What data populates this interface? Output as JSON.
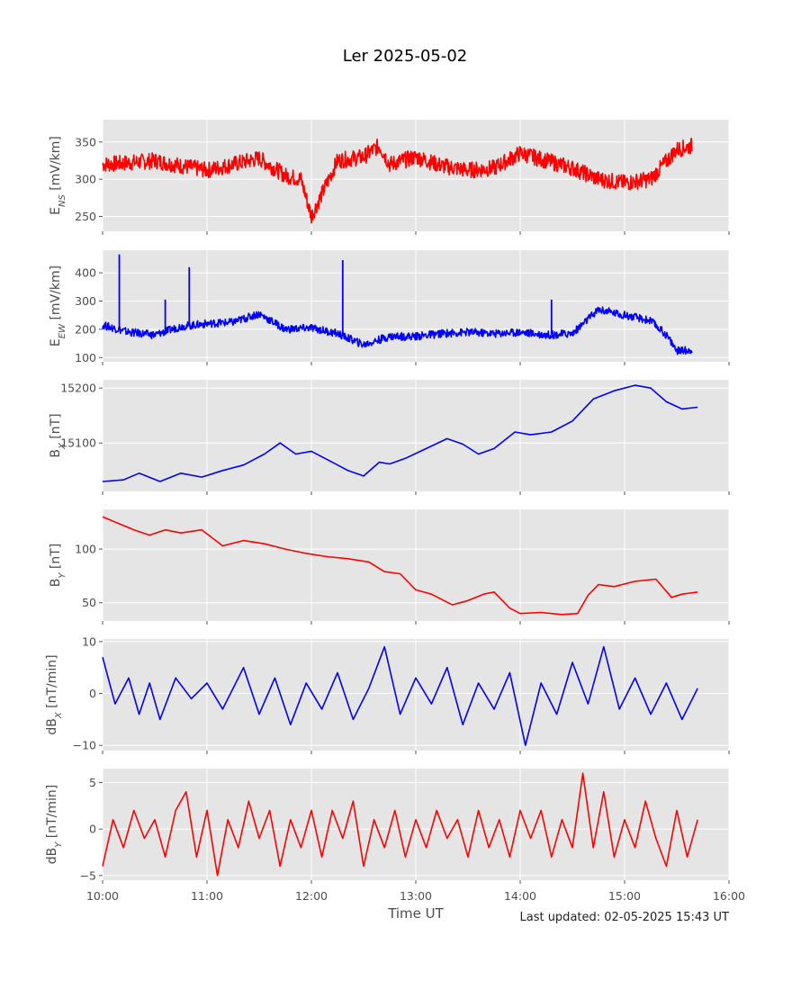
{
  "title": "Ler 2025-05-02",
  "footer": "Last updated: 02-05-2025 15:43 UT",
  "xlabel": "Time UT",
  "x_ticks": [
    "10:00",
    "11:00",
    "12:00",
    "13:00",
    "14:00",
    "15:00",
    "16:00"
  ],
  "chart_data": [
    {
      "type": "line",
      "ylabel": "E_NS [mV/km]",
      "ylim": [
        230,
        380
      ],
      "yticks": [
        250,
        300,
        350
      ],
      "color": "#ff0000",
      "xlim": [
        10.0,
        16.0
      ],
      "series": [
        {
          "x": [
            10.0,
            10.25,
            10.5,
            10.75,
            11.0,
            11.25,
            11.5,
            11.75,
            11.9,
            12.0,
            12.25,
            12.5,
            12.65,
            12.75,
            13.0,
            13.25,
            13.5,
            13.75,
            14.0,
            14.25,
            14.5,
            14.75,
            15.0,
            15.25,
            15.5,
            15.65
          ],
          "y": [
            320,
            322,
            325,
            318,
            312,
            320,
            328,
            305,
            300,
            250,
            325,
            330,
            345,
            320,
            330,
            318,
            312,
            315,
            335,
            325,
            315,
            300,
            295,
            300,
            340,
            345
          ]
        }
      ]
    },
    {
      "type": "line",
      "ylabel": "E_EW [mV/km]",
      "ylim": [
        85,
        480
      ],
      "yticks": [
        100,
        200,
        300,
        400
      ],
      "color": "#0000ff",
      "xlim": [
        10.0,
        16.0
      ],
      "series": [
        {
          "x": [
            10.0,
            10.25,
            10.5,
            10.75,
            11.0,
            11.25,
            11.5,
            11.75,
            12.0,
            12.25,
            12.5,
            12.75,
            13.0,
            13.25,
            13.5,
            13.75,
            14.0,
            14.25,
            14.5,
            14.75,
            15.0,
            15.25,
            15.4,
            15.5,
            15.6,
            15.65
          ],
          "y": [
            215,
            190,
            180,
            210,
            220,
            225,
            255,
            200,
            205,
            185,
            145,
            175,
            175,
            185,
            190,
            185,
            190,
            180,
            185,
            270,
            250,
            230,
            180,
            125,
            125,
            130
          ]
        }
      ],
      "spikes": [
        {
          "x": 10.16,
          "y": 465
        },
        {
          "x": 10.6,
          "y": 305
        },
        {
          "x": 10.83,
          "y": 420
        },
        {
          "x": 12.3,
          "y": 445
        },
        {
          "x": 14.3,
          "y": 305
        }
      ]
    },
    {
      "type": "line",
      "ylabel": "B_X [nT]",
      "ylim": [
        15012,
        15215
      ],
      "yticks": [
        15100,
        15200
      ],
      "color": "#0000ff",
      "xlim": [
        10.0,
        16.0
      ],
      "series": [
        {
          "x": [
            10.0,
            10.2,
            10.35,
            10.55,
            10.75,
            10.95,
            11.15,
            11.35,
            11.55,
            11.7,
            11.85,
            12.0,
            12.2,
            12.35,
            12.5,
            12.65,
            12.75,
            12.9,
            13.1,
            13.3,
            13.45,
            13.6,
            13.75,
            13.95,
            14.1,
            14.3,
            14.5,
            14.7,
            14.9,
            15.1,
            15.25,
            15.4,
            15.55,
            15.7
          ],
          "y": [
            15030,
            15033,
            15045,
            15030,
            15045,
            15038,
            15050,
            15060,
            15080,
            15100,
            15080,
            15085,
            15065,
            15050,
            15040,
            15065,
            15062,
            15072,
            15090,
            15108,
            15098,
            15080,
            15090,
            15120,
            15115,
            15120,
            15140,
            15180,
            15195,
            15205,
            15200,
            15175,
            15162,
            15165
          ]
        }
      ]
    },
    {
      "type": "line",
      "ylabel": "B_Y [nT]",
      "ylim": [
        33,
        137
      ],
      "yticks": [
        50,
        100
      ],
      "color": "#ff0000",
      "xlim": [
        10.0,
        16.0
      ],
      "series": [
        {
          "x": [
            10.0,
            10.15,
            10.3,
            10.45,
            10.6,
            10.75,
            10.95,
            11.15,
            11.35,
            11.55,
            11.75,
            11.95,
            12.15,
            12.35,
            12.55,
            12.7,
            12.85,
            13.0,
            13.15,
            13.35,
            13.5,
            13.65,
            13.75,
            13.9,
            14.0,
            14.2,
            14.4,
            14.55,
            14.65,
            14.75,
            14.9,
            15.1,
            15.3,
            15.45,
            15.55,
            15.7
          ],
          "y": [
            130,
            124,
            118,
            113,
            118,
            115,
            118,
            103,
            108,
            105,
            100,
            96,
            93,
            91,
            88,
            79,
            77,
            62,
            58,
            48,
            52,
            58,
            60,
            45,
            40,
            41,
            39,
            40,
            57,
            67,
            65,
            70,
            72,
            55,
            58,
            60
          ]
        }
      ]
    },
    {
      "type": "line",
      "ylabel": "dB_X [nT/min]",
      "ylim": [
        -11,
        10.5
      ],
      "yticks": [
        -10,
        0,
        10
      ],
      "color": "#0000ff",
      "xlim": [
        10.0,
        16.0
      ],
      "series": [
        {
          "x": [
            10.0,
            10.12,
            10.25,
            10.35,
            10.45,
            10.55,
            10.7,
            10.85,
            11.0,
            11.15,
            11.35,
            11.5,
            11.65,
            11.8,
            11.95,
            12.1,
            12.25,
            12.4,
            12.55,
            12.7,
            12.85,
            13.0,
            13.15,
            13.3,
            13.45,
            13.6,
            13.75,
            13.9,
            14.05,
            14.2,
            14.35,
            14.5,
            14.65,
            14.8,
            14.95,
            15.1,
            15.25,
            15.4,
            15.55,
            15.7
          ],
          "y": [
            7,
            -2,
            3,
            -4,
            2,
            -5,
            3,
            -1,
            2,
            -3,
            5,
            -4,
            3,
            -6,
            2,
            -3,
            4,
            -5,
            1,
            9,
            -4,
            3,
            -2,
            5,
            -6,
            2,
            -3,
            4,
            -10,
            2,
            -4,
            6,
            -2,
            9,
            -3,
            3,
            -4,
            2,
            -5,
            1
          ]
        }
      ]
    },
    {
      "type": "line",
      "ylabel": "dB_Y [nT/min]",
      "ylim": [
        -5.5,
        6.5
      ],
      "yticks": [
        -5,
        0,
        5
      ],
      "color": "#ff0000",
      "xlim": [
        10.0,
        16.0
      ],
      "series": [
        {
          "x": [
            10.0,
            10.1,
            10.2,
            10.3,
            10.4,
            10.5,
            10.6,
            10.7,
            10.8,
            10.9,
            11.0,
            11.1,
            11.2,
            11.3,
            11.4,
            11.5,
            11.6,
            11.7,
            11.8,
            11.9,
            12.0,
            12.1,
            12.2,
            12.3,
            12.4,
            12.5,
            12.6,
            12.7,
            12.8,
            12.9,
            13.0,
            13.1,
            13.2,
            13.3,
            13.4,
            13.5,
            13.6,
            13.7,
            13.8,
            13.9,
            14.0,
            14.1,
            14.2,
            14.3,
            14.4,
            14.5,
            14.6,
            14.7,
            14.8,
            14.9,
            15.0,
            15.1,
            15.2,
            15.3,
            15.4,
            15.5,
            15.6,
            15.7
          ],
          "y": [
            -4,
            1,
            -2,
            2,
            -1,
            1,
            -3,
            2,
            4,
            -3,
            2,
            -5,
            1,
            -2,
            3,
            -1,
            2,
            -4,
            1,
            -2,
            2,
            -3,
            2,
            -1,
            3,
            -4,
            1,
            -2,
            2,
            -3,
            1,
            -2,
            2,
            -1,
            1,
            -3,
            2,
            -2,
            1,
            -3,
            2,
            -1,
            2,
            -3,
            1,
            -2,
            6,
            -2,
            4,
            -3,
            1,
            -2,
            3,
            -1,
            -4,
            2,
            -3,
            1
          ]
        }
      ]
    }
  ]
}
